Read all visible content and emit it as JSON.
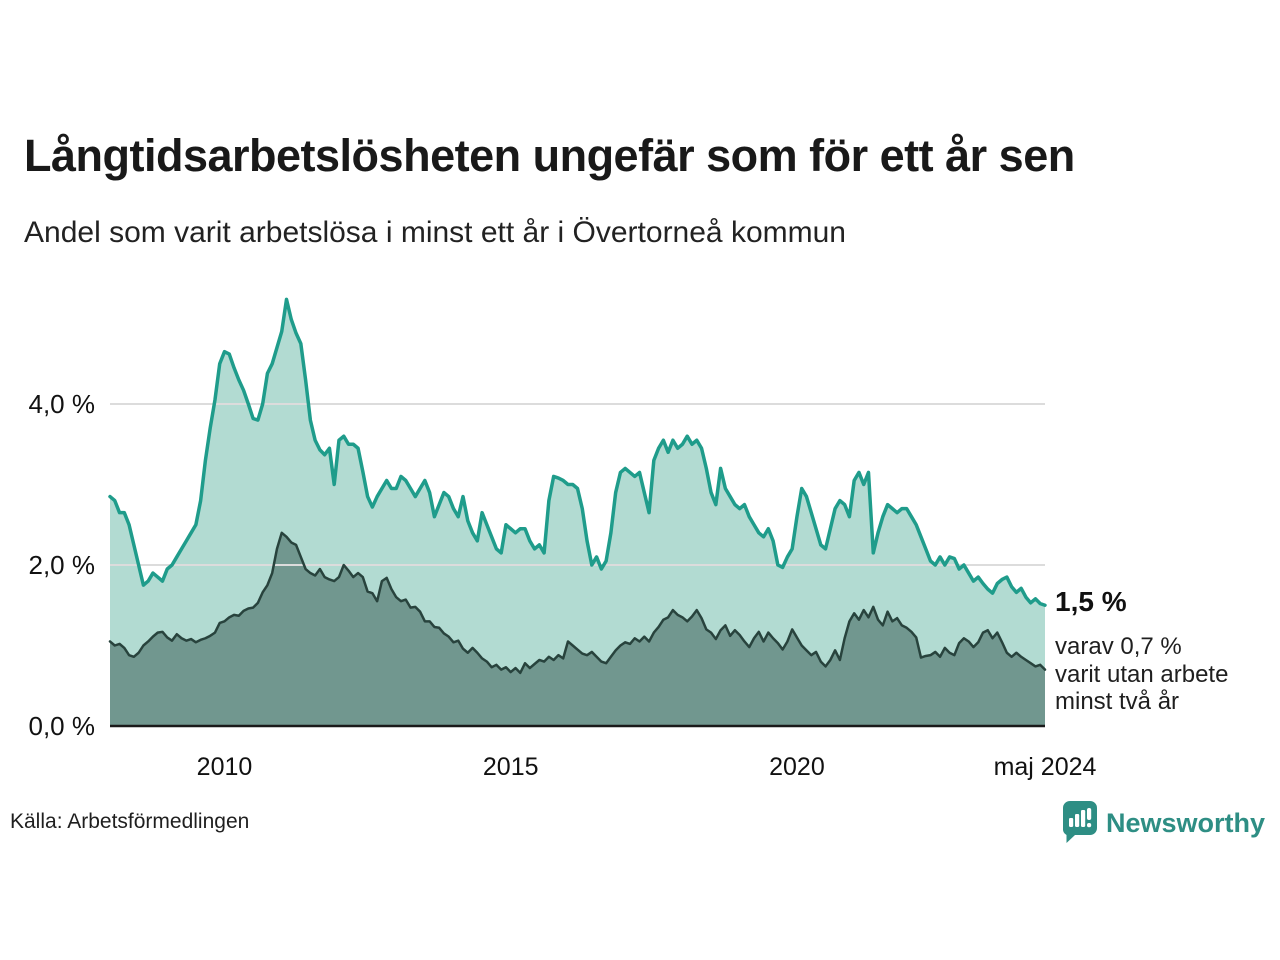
{
  "header": {
    "title": "Långtidsarbetslösheten ungefär som för ett år sen",
    "subtitle": "Andel som varit arbetslösa i minst ett år i Övertorneå kommun"
  },
  "chart_data": {
    "type": "area",
    "unit": "percent",
    "frequency": "monthly",
    "x_start": "2008-01",
    "x_end": "2024-05",
    "ylim": [
      0,
      5.5
    ],
    "grid": "horizontal",
    "y_ticks": [
      {
        "value": 0,
        "label": "0,0 %"
      },
      {
        "value": 2,
        "label": "2,0 %"
      },
      {
        "value": 4,
        "label": "4,0 %"
      }
    ],
    "x_ticks": [
      {
        "month_index": 24,
        "label": "2010"
      },
      {
        "month_index": 84,
        "label": "2015"
      },
      {
        "month_index": 144,
        "label": "2020"
      },
      {
        "month_index": 196,
        "label": "maj 2024"
      }
    ],
    "series": [
      {
        "name": "Andel som varit arbetslösa i minst ett år",
        "line_color": "#1f9c8b",
        "fill_color": "#b2dbd2",
        "line_width": 3.5,
        "values": [
          2.85,
          2.8,
          2.65,
          2.65,
          2.5,
          2.25,
          2.0,
          1.75,
          1.8,
          1.9,
          1.85,
          1.8,
          1.95,
          2.0,
          2.1,
          2.2,
          2.3,
          2.4,
          2.5,
          2.8,
          3.3,
          3.7,
          4.05,
          4.5,
          4.65,
          4.62,
          4.45,
          4.3,
          4.17,
          4.0,
          3.82,
          3.8,
          4.0,
          4.38,
          4.5,
          4.7,
          4.9,
          5.3,
          5.05,
          4.88,
          4.75,
          4.3,
          3.8,
          3.55,
          3.43,
          3.37,
          3.45,
          3.0,
          3.55,
          3.6,
          3.5,
          3.5,
          3.45,
          3.16,
          2.85,
          2.72,
          2.85,
          2.95,
          3.05,
          2.95,
          2.95,
          3.1,
          3.05,
          2.95,
          2.85,
          2.95,
          3.05,
          2.9,
          2.6,
          2.75,
          2.9,
          2.85,
          2.7,
          2.6,
          2.85,
          2.55,
          2.4,
          2.3,
          2.65,
          2.5,
          2.35,
          2.2,
          2.15,
          2.5,
          2.45,
          2.4,
          2.45,
          2.45,
          2.3,
          2.2,
          2.25,
          2.15,
          2.8,
          3.1,
          3.08,
          3.05,
          3.0,
          3.0,
          2.95,
          2.7,
          2.3,
          2.0,
          2.1,
          1.95,
          2.05,
          2.4,
          2.9,
          3.15,
          3.2,
          3.15,
          3.1,
          3.15,
          2.9,
          2.65,
          3.3,
          3.45,
          3.55,
          3.4,
          3.55,
          3.45,
          3.5,
          3.6,
          3.5,
          3.55,
          3.45,
          3.2,
          2.9,
          2.75,
          3.2,
          2.95,
          2.85,
          2.75,
          2.7,
          2.75,
          2.6,
          2.5,
          2.4,
          2.35,
          2.45,
          2.3,
          2.0,
          1.97,
          2.1,
          2.2,
          2.6,
          2.95,
          2.85,
          2.65,
          2.45,
          2.25,
          2.2,
          2.45,
          2.7,
          2.8,
          2.75,
          2.6,
          3.05,
          3.15,
          3.0,
          3.15,
          2.15,
          2.4,
          2.6,
          2.75,
          2.7,
          2.65,
          2.7,
          2.7,
          2.6,
          2.5,
          2.35,
          2.2,
          2.05,
          2.0,
          2.1,
          2.0,
          2.1,
          2.08,
          1.95,
          2.0,
          1.9,
          1.8,
          1.85,
          1.77,
          1.7,
          1.65,
          1.77,
          1.82,
          1.85,
          1.73,
          1.66,
          1.71,
          1.6,
          1.53,
          1.58,
          1.52,
          1.5
        ]
      },
      {
        "name": "varav utan arbete minst två år",
        "line_color": "#28433d",
        "fill_color": "#71978f",
        "line_width": 2.5,
        "values": [
          1.05,
          1.0,
          1.02,
          0.97,
          0.88,
          0.86,
          0.91,
          1.0,
          1.05,
          1.11,
          1.16,
          1.17,
          1.1,
          1.06,
          1.14,
          1.09,
          1.06,
          1.08,
          1.04,
          1.07,
          1.09,
          1.12,
          1.16,
          1.28,
          1.3,
          1.35,
          1.38,
          1.37,
          1.43,
          1.46,
          1.47,
          1.53,
          1.66,
          1.75,
          1.9,
          2.2,
          2.4,
          2.35,
          2.28,
          2.25,
          2.1,
          1.95,
          1.9,
          1.87,
          1.95,
          1.85,
          1.82,
          1.8,
          1.85,
          2.0,
          1.93,
          1.85,
          1.9,
          1.85,
          1.67,
          1.65,
          1.55,
          1.8,
          1.84,
          1.7,
          1.6,
          1.55,
          1.57,
          1.47,
          1.48,
          1.42,
          1.3,
          1.3,
          1.23,
          1.22,
          1.15,
          1.11,
          1.04,
          1.06,
          0.96,
          0.91,
          0.97,
          0.91,
          0.84,
          0.8,
          0.73,
          0.76,
          0.7,
          0.73,
          0.67,
          0.72,
          0.66,
          0.78,
          0.72,
          0.77,
          0.82,
          0.8,
          0.86,
          0.82,
          0.88,
          0.84,
          1.05,
          1.0,
          0.95,
          0.9,
          0.88,
          0.92,
          0.86,
          0.8,
          0.78,
          0.86,
          0.94,
          1.0,
          1.04,
          1.02,
          1.09,
          1.05,
          1.11,
          1.05,
          1.16,
          1.23,
          1.32,
          1.35,
          1.44,
          1.38,
          1.35,
          1.3,
          1.36,
          1.44,
          1.34,
          1.2,
          1.16,
          1.08,
          1.19,
          1.25,
          1.12,
          1.19,
          1.13,
          1.05,
          0.98,
          1.09,
          1.17,
          1.05,
          1.16,
          1.09,
          1.03,
          0.95,
          1.05,
          1.2,
          1.1,
          1.0,
          0.94,
          0.88,
          0.92,
          0.8,
          0.74,
          0.82,
          0.94,
          0.82,
          1.09,
          1.3,
          1.4,
          1.32,
          1.44,
          1.35,
          1.48,
          1.32,
          1.25,
          1.42,
          1.3,
          1.34,
          1.25,
          1.22,
          1.17,
          1.1,
          0.85,
          0.87,
          0.88,
          0.92,
          0.86,
          0.97,
          0.91,
          0.88,
          1.03,
          1.09,
          1.05,
          0.98,
          1.04,
          1.16,
          1.19,
          1.09,
          1.16,
          1.04,
          0.91,
          0.86,
          0.91,
          0.86,
          0.82,
          0.78,
          0.74,
          0.76,
          0.7
        ]
      }
    ],
    "annotation": {
      "value_label": "1,5 %",
      "note": "varav 0,7 %\nvarit utan arbete\nminst två år"
    },
    "colors": {
      "grid": "#dcdcdc",
      "baseline": "#1a1a1a"
    }
  },
  "footer": {
    "source": "Källa: Arbetsförmedlingen",
    "brand": "Newsworthy",
    "brand_color": "#2e8e84"
  }
}
